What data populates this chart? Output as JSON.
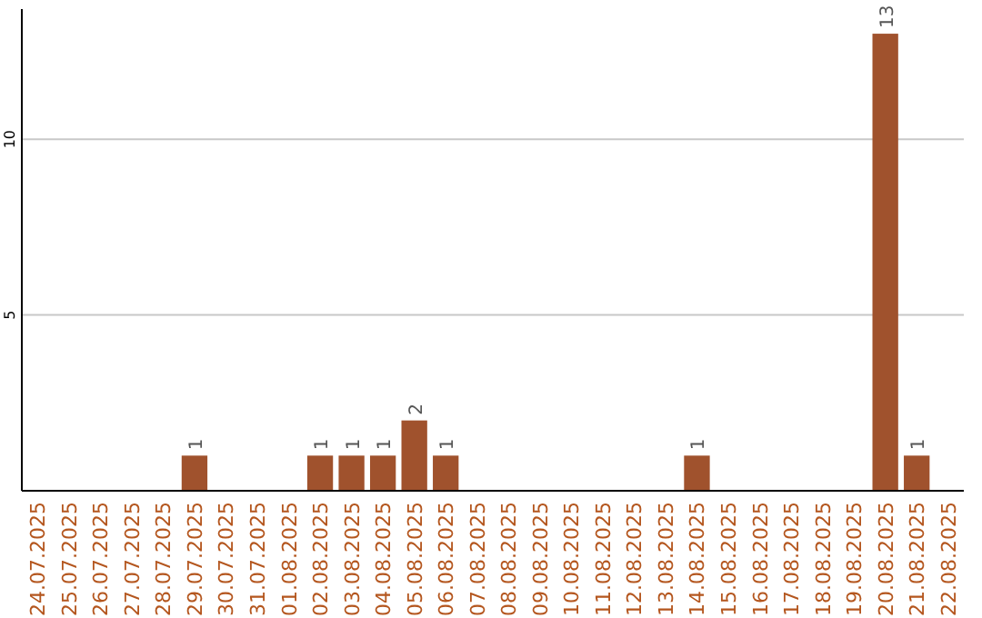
{
  "chart_data": {
    "type": "bar",
    "categories": [
      "24.07.2025",
      "25.07.2025",
      "26.07.2025",
      "27.07.2025",
      "28.07.2025",
      "29.07.2025",
      "30.07.2025",
      "31.07.2025",
      "01.08.2025",
      "02.08.2025",
      "03.08.2025",
      "04.08.2025",
      "05.08.2025",
      "06.08.2025",
      "07.08.2025",
      "08.08.2025",
      "09.08.2025",
      "10.08.2025",
      "11.08.2025",
      "12.08.2025",
      "13.08.2025",
      "14.08.2025",
      "15.08.2025",
      "16.08.2025",
      "17.08.2025",
      "18.08.2025",
      "19.08.2025",
      "20.08.2025",
      "21.08.2025",
      "22.08.2025"
    ],
    "values": [
      0,
      0,
      0,
      0,
      0,
      1,
      0,
      0,
      0,
      1,
      1,
      1,
      2,
      1,
      0,
      0,
      0,
      0,
      0,
      0,
      0,
      1,
      0,
      0,
      0,
      0,
      0,
      13,
      1,
      0
    ],
    "value_labels": [
      null,
      null,
      null,
      null,
      null,
      "1",
      null,
      null,
      null,
      "1",
      "1",
      "1",
      "2",
      "1",
      null,
      null,
      null,
      null,
      null,
      null,
      null,
      "1",
      null,
      null,
      null,
      null,
      null,
      "13",
      "1",
      null
    ],
    "color": "#a0522d",
    "ylim": [
      0,
      13.7
    ],
    "yticks": [
      5,
      10
    ],
    "grid": "y"
  }
}
